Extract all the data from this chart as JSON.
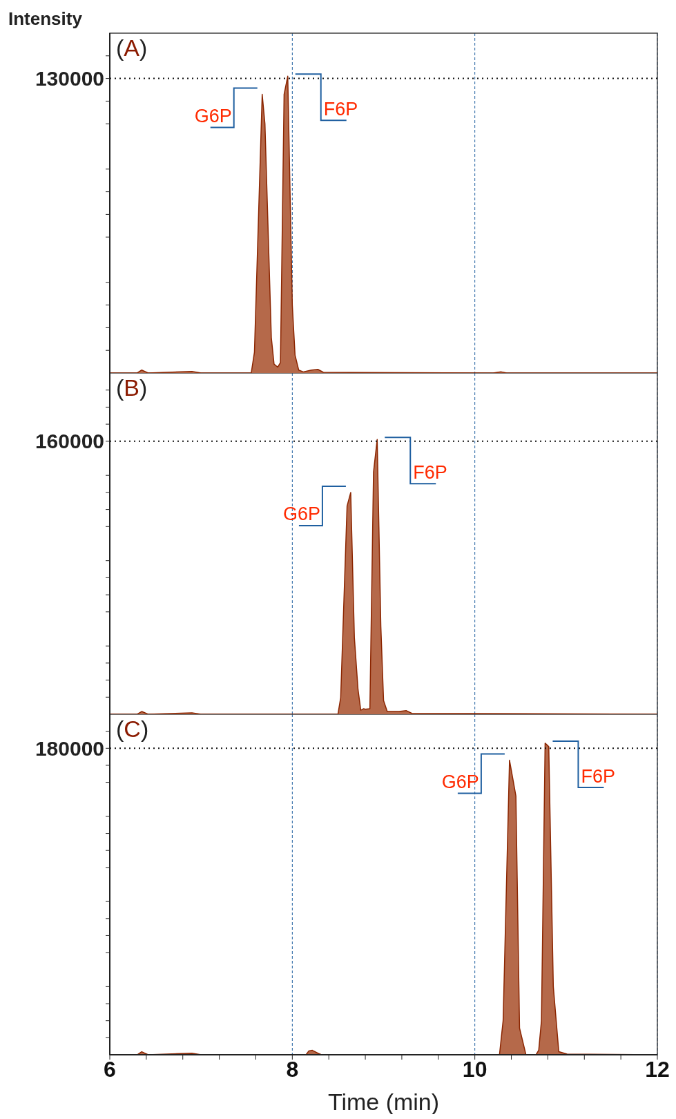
{
  "chart_data": [
    {
      "type": "area",
      "ylabel": "Intensity",
      "color": "#b5694a",
      "grid": "x",
      "tick_labels": "y",
      "xlim": [
        6,
        12
      ],
      "xticks": [
        6,
        8,
        10,
        12
      ],
      "ylim": [
        0,
        150000
      ],
      "yticks": [
        {
          "value": 10000,
          "label": null
        },
        {
          "value": 20000,
          "label": null
        },
        {
          "value": 30000,
          "label": null
        },
        {
          "value": 40000,
          "label": null
        },
        {
          "value": 60000,
          "label": null
        },
        {
          "value": 70000,
          "label": null
        },
        {
          "value": 80000,
          "label": null
        },
        {
          "value": 90000,
          "label": null
        },
        {
          "value": 110000,
          "label": null
        },
        {
          "value": 120000,
          "label": null
        },
        130000,
        {
          "value": 140000,
          "label": null
        }
      ],
      "x": [
        6.0,
        6.3,
        6.35,
        6.42,
        6.9,
        7.0,
        7.55,
        7.585,
        7.67,
        7.7,
        7.77,
        7.8,
        7.84,
        7.87,
        7.91,
        7.95,
        8.0,
        8.03,
        8.07,
        8.12,
        8.21,
        8.28,
        8.34,
        10.2,
        10.29,
        10.35,
        12.0
      ],
      "values": [
        0,
        0,
        1300,
        0,
        700,
        0,
        0,
        9200,
        123000,
        110000,
        15700,
        3900,
        2600,
        4600,
        123000,
        131000,
        30000,
        7900,
        1300,
        500,
        1300,
        1600,
        300,
        0,
        500,
        0,
        0
      ],
      "ref_lines": [
        {
          "axis": "y",
          "value": 130000,
          "line_style": "dotted"
        }
      ],
      "annotations": [
        "(A)",
        {
          "text": "G6P",
          "x": 7.67,
          "y": 123000
        },
        {
          "text": "F6P",
          "x": 7.95,
          "y": 131000
        }
      ]
    },
    {
      "type": "area",
      "color": "#b5694a",
      "grid": "x",
      "tick_labels": "y",
      "xlim": [
        6,
        12
      ],
      "xticks": [
        6,
        8,
        10,
        12
      ],
      "ylim": [
        0,
        200000
      ],
      "yticks": [
        {
          "value": 10000,
          "label": null
        },
        {
          "value": 20000,
          "label": null
        },
        {
          "value": 30000,
          "label": null
        },
        {
          "value": 40000,
          "label": null
        },
        {
          "value": 60000,
          "label": null
        },
        {
          "value": 70000,
          "label": null
        },
        {
          "value": 80000,
          "label": null
        },
        {
          "value": 90000,
          "label": null
        },
        {
          "value": 110000,
          "label": null
        },
        {
          "value": 120000,
          "label": null
        },
        {
          "value": 130000,
          "label": null
        },
        {
          "value": 140000,
          "label": null
        },
        160000,
        {
          "value": 170000,
          "label": null
        },
        {
          "value": 180000,
          "label": null
        },
        {
          "value": 190000,
          "label": null
        }
      ],
      "x": [
        6.0,
        6.3,
        6.35,
        6.42,
        6.9,
        7.0,
        8.5,
        8.53,
        8.6,
        8.64,
        8.68,
        8.72,
        8.75,
        8.78,
        8.8,
        8.85,
        8.89,
        8.93,
        8.97,
        9.0,
        9.04,
        9.17,
        9.25,
        9.31,
        12.0
      ],
      "values": [
        0,
        0,
        1600,
        0,
        800,
        0,
        0,
        9700,
        122000,
        130000,
        45000,
        14500,
        2400,
        3200,
        2900,
        3200,
        142000,
        161000,
        51500,
        8000,
        1600,
        1600,
        2100,
        500,
        0
      ],
      "ref_lines": [
        {
          "axis": "y",
          "value": 160000,
          "line_style": "dotted"
        }
      ],
      "annotations": [
        "(B)",
        {
          "text": "G6P",
          "x": 8.64,
          "y": 130000
        },
        {
          "text": "F6P",
          "x": 8.93,
          "y": 161000
        }
      ]
    },
    {
      "type": "area",
      "color": "#b5694a",
      "grid": "x",
      "xlabel": "Time (min)",
      "xlim": [
        6,
        12
      ],
      "ylim": [
        0,
        200000
      ],
      "xticks": [
        6,
        {
          "value": 6.4,
          "label": null
        },
        {
          "value": 6.8,
          "label": null
        },
        {
          "value": 7.2,
          "label": null
        },
        {
          "value": 7.6,
          "label": null
        },
        8,
        {
          "value": 8.4,
          "label": null
        },
        {
          "value": 8.8,
          "label": null
        },
        {
          "value": 9.2,
          "label": null
        },
        {
          "value": 9.6,
          "label": null
        },
        10,
        {
          "value": 10.4,
          "label": null
        },
        {
          "value": 10.8,
          "label": null
        },
        {
          "value": 11.2,
          "label": null
        },
        {
          "value": 11.6,
          "label": null
        },
        12
      ],
      "yticks": [
        {
          "value": 10000,
          "label": null
        },
        {
          "value": 20000,
          "label": null
        },
        {
          "value": 30000,
          "label": null
        },
        {
          "value": 40000,
          "label": null
        },
        {
          "value": 60000,
          "label": null
        },
        {
          "value": 70000,
          "label": null
        },
        {
          "value": 80000,
          "label": null
        },
        {
          "value": 90000,
          "label": null
        },
        {
          "value": 110000,
          "label": null
        },
        {
          "value": 120000,
          "label": null
        },
        {
          "value": 130000,
          "label": null
        },
        {
          "value": 140000,
          "label": null
        },
        {
          "value": 160000,
          "label": null
        },
        {
          "value": 170000,
          "label": null
        },
        180000,
        {
          "value": 190000,
          "label": null
        }
      ],
      "x": [
        6.0,
        6.3,
        6.35,
        6.42,
        6.9,
        7.0,
        8.15,
        8.18,
        8.22,
        8.28,
        8.32,
        10.27,
        10.31,
        10.38,
        10.42,
        10.45,
        10.49,
        10.56,
        10.67,
        10.7,
        10.73,
        10.77,
        10.81,
        10.86,
        10.92,
        11.01,
        12.0
      ],
      "values": [
        0,
        0,
        1800,
        0,
        900,
        0,
        0,
        2200,
        2600,
        900,
        0,
        0,
        20000,
        173000,
        161000,
        152000,
        15600,
        0,
        0,
        2700,
        20000,
        183000,
        181000,
        40000,
        1800,
        400,
        0
      ],
      "ref_lines": [
        {
          "axis": "y",
          "value": 180000,
          "line_style": "dotted"
        }
      ],
      "annotations": [
        "(C)",
        {
          "text": "G6P",
          "x": 10.38,
          "y": 173000
        },
        {
          "text": "F6P",
          "x": 10.77,
          "y": 183000
        }
      ]
    }
  ]
}
